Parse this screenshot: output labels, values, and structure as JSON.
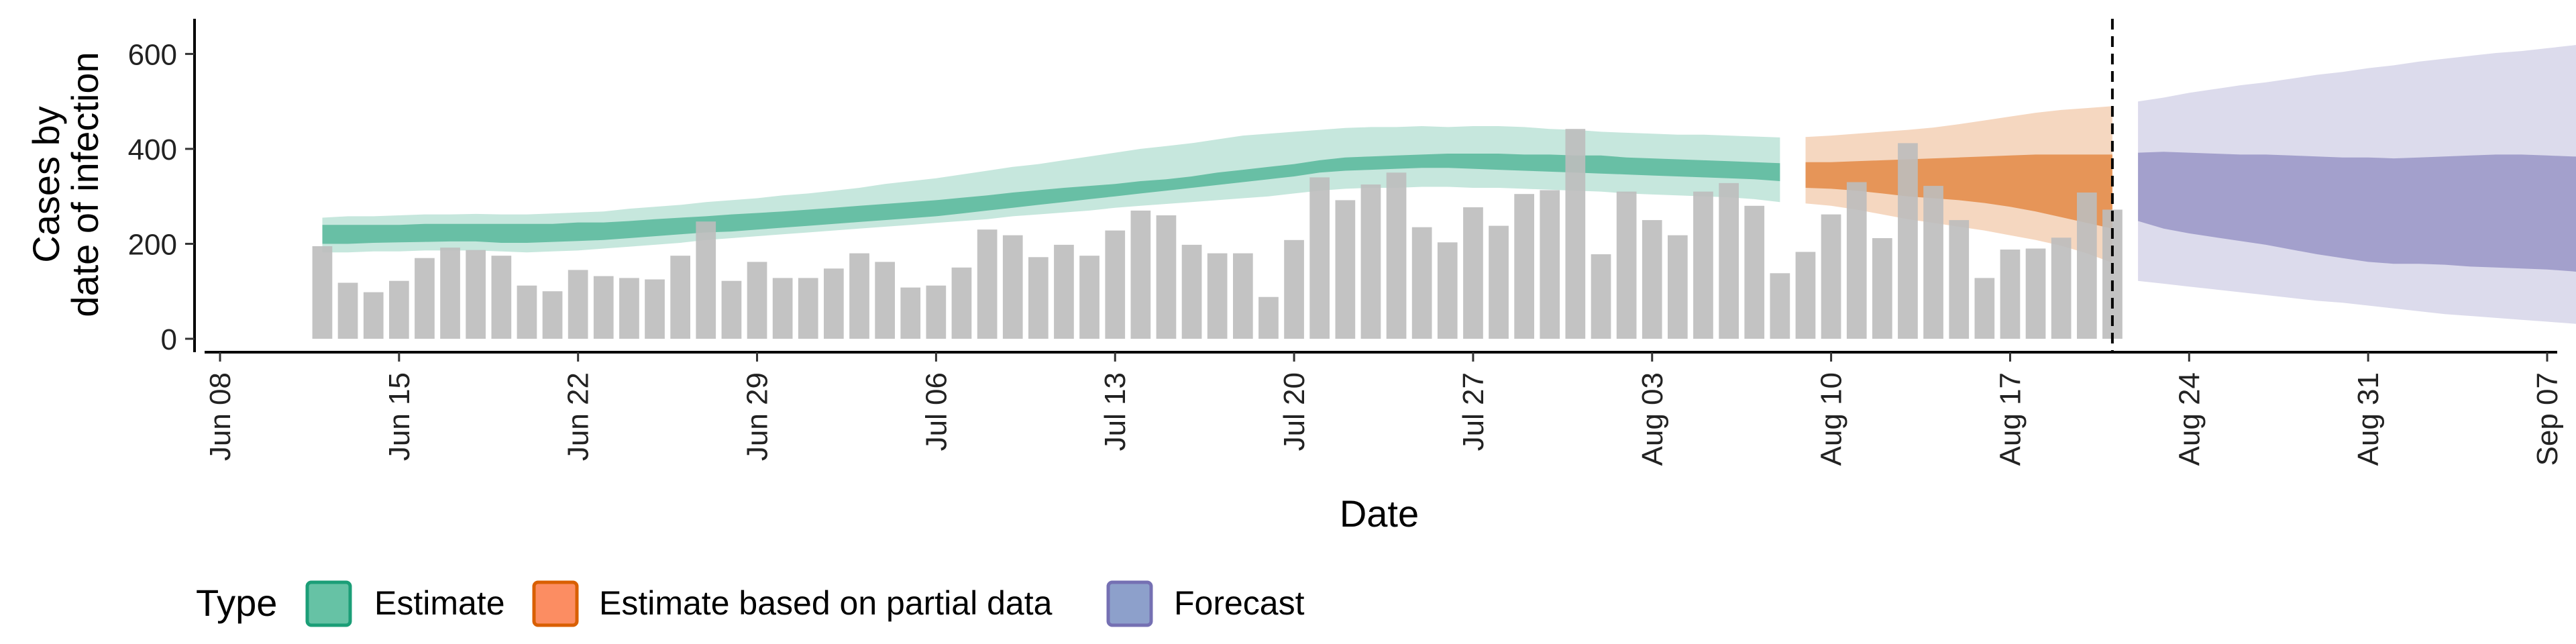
{
  "chart_data": {
    "type": "bar",
    "title": "",
    "xlabel": "Date",
    "ylabel_lines": [
      "Cases by",
      "date of infection"
    ],
    "x_start": "2020-06-08",
    "x_end": "2020-09-07",
    "ylim": [
      0,
      650
    ],
    "y_ticks": [
      0,
      200,
      400,
      600
    ],
    "x_ticks": [
      {
        "date": "2020-06-08",
        "label": "Jun 08"
      },
      {
        "date": "2020-06-15",
        "label": "Jun 15"
      },
      {
        "date": "2020-06-22",
        "label": "Jun 22"
      },
      {
        "date": "2020-06-29",
        "label": "Jun 29"
      },
      {
        "date": "2020-07-06",
        "label": "Jul 06"
      },
      {
        "date": "2020-07-13",
        "label": "Jul 13"
      },
      {
        "date": "2020-07-20",
        "label": "Jul 20"
      },
      {
        "date": "2020-07-27",
        "label": "Jul 27"
      },
      {
        "date": "2020-08-03",
        "label": "Aug 03"
      },
      {
        "date": "2020-08-10",
        "label": "Aug 10"
      },
      {
        "date": "2020-08-17",
        "label": "Aug 17"
      },
      {
        "date": "2020-08-24",
        "label": "Aug 24"
      },
      {
        "date": "2020-08-31",
        "label": "Aug 31"
      },
      {
        "date": "2020-09-07",
        "label": "Sep 07"
      }
    ],
    "vline_date": "2020-08-21",
    "grid": false,
    "legend_position": "bottom",
    "bar_color": "#bdbdbd",
    "bars": {
      "start_date": "2020-06-12",
      "values": [
        195,
        118,
        98,
        122,
        170,
        192,
        187,
        175,
        112,
        100,
        145,
        132,
        128,
        125,
        175,
        247,
        122,
        162,
        128,
        128,
        148,
        180,
        162,
        108,
        112,
        150,
        230,
        218,
        172,
        198,
        175,
        228,
        270,
        260,
        198,
        180,
        180,
        88,
        208,
        340,
        292,
        325,
        350,
        235,
        203,
        277,
        238,
        305,
        313,
        442,
        178,
        310,
        250,
        218,
        310,
        328,
        280,
        138,
        183,
        262,
        330,
        212,
        412,
        322,
        250,
        128,
        188,
        190,
        213,
        308,
        272
      ]
    },
    "series": [
      {
        "name": "Estimate",
        "color": "#1b9e77",
        "fill": "#66c2a5",
        "start_date": "2020-06-12",
        "inner_upper": [
          240,
          240,
          240,
          240,
          242,
          242,
          242,
          242,
          242,
          242,
          245,
          245,
          248,
          252,
          255,
          258,
          262,
          265,
          268,
          272,
          276,
          280,
          284,
          288,
          292,
          297,
          302,
          308,
          313,
          318,
          322,
          326,
          332,
          336,
          342,
          350,
          356,
          362,
          368,
          376,
          382,
          384,
          386,
          388,
          390,
          390,
          390,
          388,
          388,
          386,
          386,
          382,
          380,
          378,
          376,
          374,
          372,
          370
        ],
        "inner_lower": [
          200,
          200,
          202,
          203,
          204,
          205,
          205,
          202,
          202,
          204,
          206,
          208,
          212,
          216,
          220,
          224,
          226,
          230,
          234,
          238,
          242,
          246,
          250,
          254,
          258,
          264,
          270,
          276,
          282,
          288,
          294,
          300,
          306,
          312,
          318,
          324,
          330,
          336,
          342,
          350,
          354,
          356,
          358,
          360,
          360,
          358,
          356,
          354,
          352,
          350,
          348,
          346,
          344,
          342,
          340,
          338,
          336,
          332
        ],
        "outer_upper": [
          255,
          258,
          258,
          260,
          262,
          262,
          263,
          262,
          262,
          264,
          266,
          268,
          274,
          278,
          282,
          288,
          292,
          296,
          302,
          306,
          312,
          318,
          326,
          332,
          338,
          346,
          354,
          362,
          368,
          376,
          384,
          392,
          400,
          406,
          412,
          420,
          428,
          432,
          436,
          440,
          444,
          446,
          446,
          448,
          446,
          448,
          448,
          446,
          442,
          440,
          436,
          434,
          432,
          430,
          430,
          428,
          426,
          424
        ],
        "outer_lower": [
          182,
          182,
          184,
          184,
          186,
          186,
          186,
          184,
          182,
          184,
          186,
          190,
          194,
          198,
          202,
          208,
          212,
          216,
          220,
          224,
          228,
          232,
          236,
          240,
          244,
          248,
          252,
          258,
          262,
          266,
          270,
          276,
          280,
          284,
          288,
          292,
          296,
          300,
          306,
          312,
          316,
          318,
          318,
          320,
          320,
          318,
          318,
          316,
          314,
          312,
          310,
          306,
          304,
          302,
          300,
          298,
          294,
          288
        ]
      },
      {
        "name": "Estimate based on partial data",
        "color": "#d95f02",
        "fill": "#fc8d62",
        "start_date": "2020-08-09",
        "inner_upper": [
          372,
          372,
          374,
          376,
          378,
          380,
          382,
          384,
          386,
          388,
          388,
          388,
          388
        ],
        "inner_lower": [
          318,
          316,
          312,
          306,
          300,
          296,
          292,
          286,
          278,
          268,
          256,
          244,
          232
        ],
        "outer_upper": [
          425,
          428,
          432,
          436,
          440,
          445,
          452,
          460,
          468,
          476,
          482,
          486,
          490
        ],
        "outer_lower": [
          285,
          280,
          272,
          262,
          252,
          244,
          236,
          228,
          218,
          208,
          196,
          180,
          160
        ]
      },
      {
        "name": "Forecast",
        "color": "#7570b3",
        "fill": "#8da0cb",
        "start_date": "2020-08-22",
        "inner_upper": [
          392,
          394,
          392,
          390,
          388,
          388,
          386,
          384,
          382,
          382,
          380,
          382,
          384,
          386,
          388,
          388,
          386,
          384,
          382,
          382,
          384
        ],
        "inner_lower": [
          248,
          232,
          222,
          214,
          206,
          198,
          188,
          178,
          170,
          162,
          158,
          158,
          156,
          152,
          150,
          148,
          146,
          142,
          136,
          130,
          124
        ],
        "outer_upper": [
          500,
          508,
          518,
          526,
          534,
          540,
          548,
          556,
          562,
          570,
          576,
          584,
          590,
          596,
          602,
          606,
          612,
          618,
          624,
          630,
          636
        ],
        "outer_lower": [
          122,
          116,
          110,
          104,
          98,
          92,
          86,
          80,
          76,
          70,
          64,
          58,
          52,
          48,
          44,
          40,
          36,
          32,
          28,
          26,
          24
        ]
      }
    ]
  },
  "legend": {
    "title": "Type",
    "items": [
      {
        "label": "Estimate",
        "fill": "#66c2a5",
        "stroke": "#1b9e77"
      },
      {
        "label": "Estimate based on partial data",
        "fill": "#fc8d62",
        "stroke": "#d95f02"
      },
      {
        "label": "Forecast",
        "fill": "#8da0cb",
        "stroke": "#7570b3"
      }
    ]
  }
}
